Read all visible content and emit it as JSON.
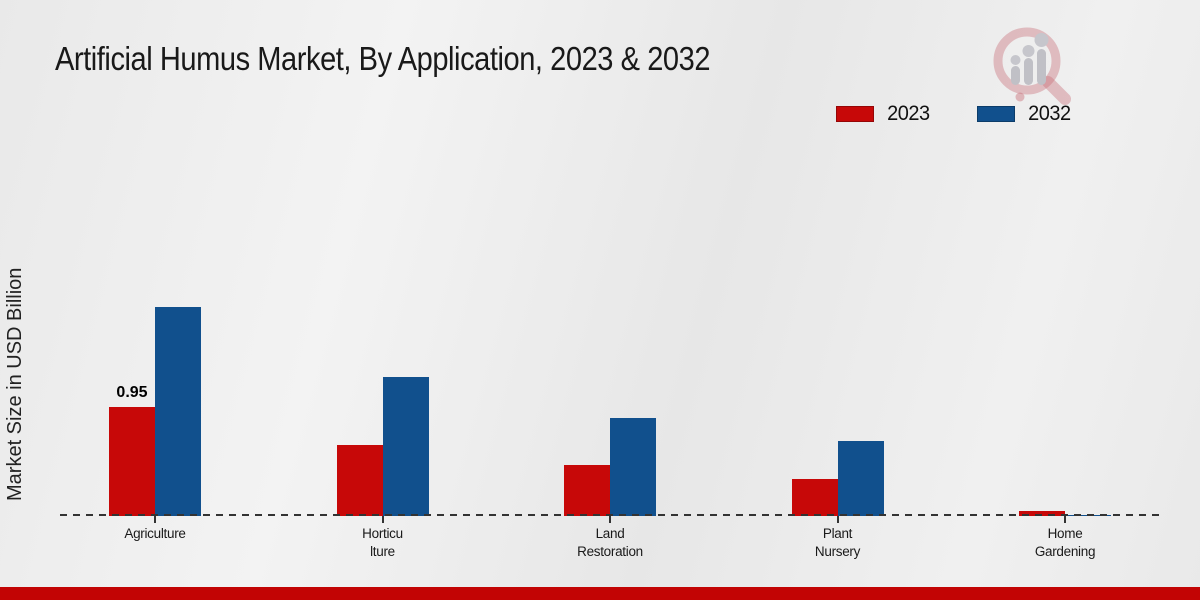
{
  "title": "Artificial Humus Market, By Application, 2023 & 2032",
  "y_axis_label": "Market Size in USD Billion",
  "colors": {
    "series_2023": "#c70808",
    "series_2032": "#11508d",
    "footer_strip": "#c20404",
    "baseline": "#333333",
    "background": "#ececec"
  },
  "legend": {
    "position": "top-right",
    "items": [
      {
        "label": "2023",
        "color": "#c70808"
      },
      {
        "label": "2032",
        "color": "#11508d"
      }
    ]
  },
  "logo": {
    "name": "market-research-magnifier-logo"
  },
  "chart_data": {
    "type": "bar",
    "title": "Artificial Humus Market, By Application, 2023 & 2032",
    "xlabel": "",
    "ylabel": "Market Size in USD Billion",
    "ylim": [
      0,
      2.2
    ],
    "grid": false,
    "baseline_style": "dashed",
    "legend_position": "top-right",
    "categories": [
      "Agriculture",
      "Horticu\nlture",
      "Land\nRestoration",
      "Plant\nNursery",
      "Home\nGardening"
    ],
    "series": [
      {
        "name": "2023",
        "color": "#c70808",
        "values": [
          0.95,
          0.62,
          0.44,
          0.32,
          0.04
        ],
        "labels": [
          "0.95",
          null,
          null,
          null,
          null
        ]
      },
      {
        "name": "2032",
        "color": "#11508d",
        "values": [
          1.82,
          1.21,
          0.85,
          0.65,
          0.01
        ],
        "labels": [
          null,
          null,
          null,
          null,
          null
        ]
      }
    ]
  }
}
